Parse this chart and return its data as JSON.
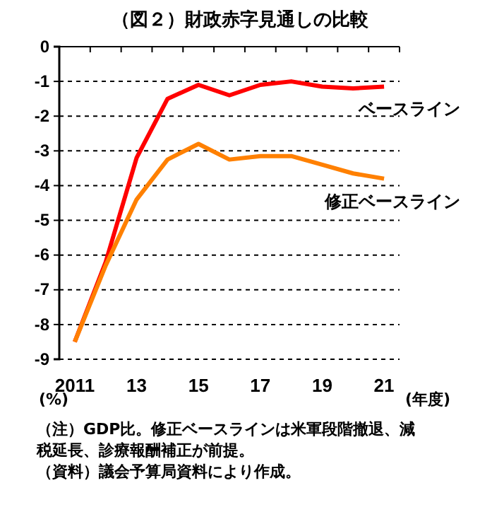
{
  "chart_data": {
    "type": "line",
    "title": "（図２）財政赤字見通しの比較",
    "categories": [
      "2011",
      null,
      "13",
      null,
      "15",
      null,
      "17",
      null,
      "19",
      null,
      "21"
    ],
    "series": [
      {
        "name": "ベースライン",
        "color": "#ff0000",
        "values": [
          -8.5,
          -6.2,
          -3.2,
          -1.5,
          -1.1,
          -1.4,
          -1.1,
          -1.0,
          -1.15,
          -1.2,
          -1.15
        ]
      },
      {
        "name": "修正ベースライン",
        "color": "#ff8000",
        "values": [
          -8.5,
          -6.3,
          -4.4,
          -3.25,
          -2.8,
          -3.25,
          -3.15,
          -3.15,
          -3.4,
          -3.65,
          -3.8
        ]
      }
    ],
    "ylim": [
      -9,
      0
    ],
    "yticks": [
      -9,
      -8,
      -7,
      -6,
      -5,
      -4,
      -3,
      -2,
      -1,
      0
    ],
    "ylabel": "(%)",
    "xlabel": "(年度)",
    "grid": "y",
    "line_style": "solid",
    "marker": "none",
    "annotations": [
      "（注）GDP比。修正ベースラインは米軍段階撤退、減税延長、診療報酬補正が前提。",
      "（資料）議会予算局資料により作成。"
    ]
  }
}
